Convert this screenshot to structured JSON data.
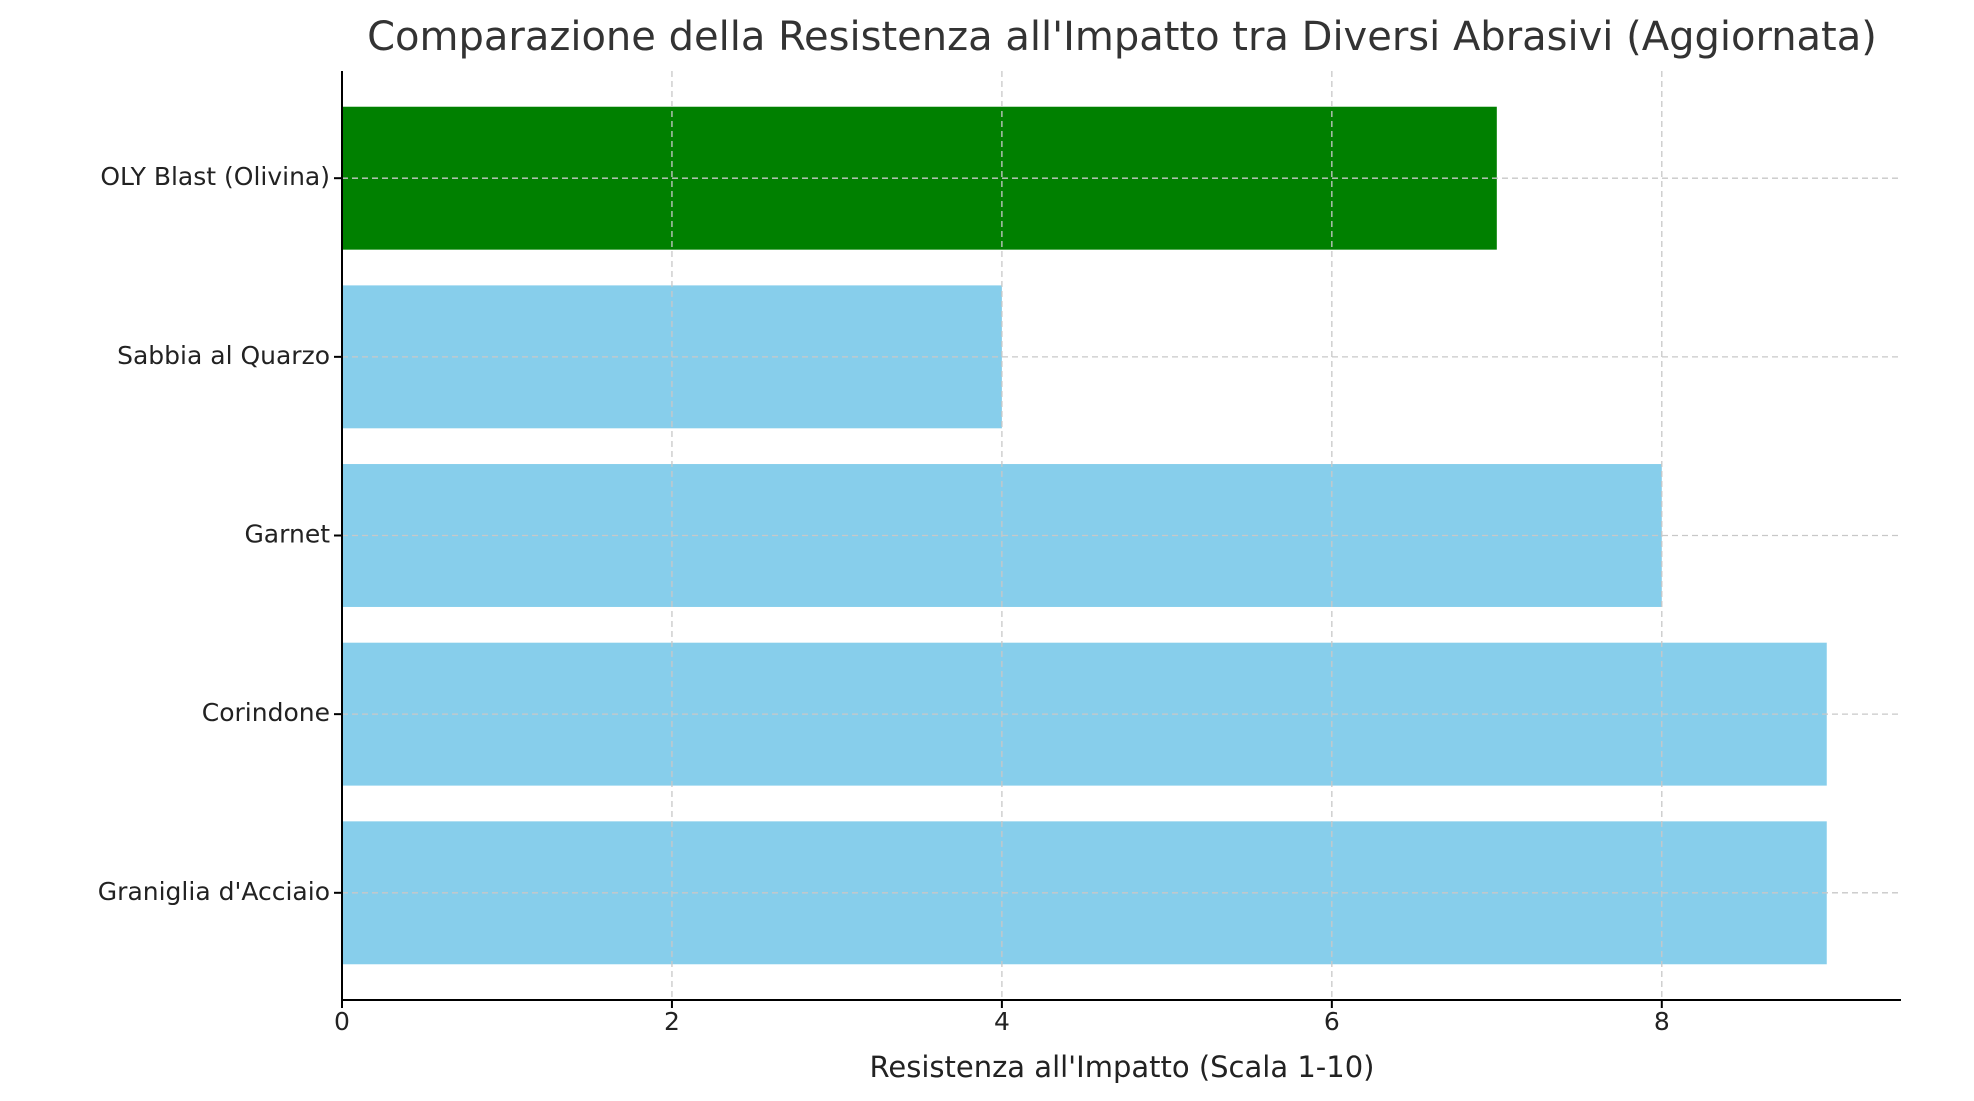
{
  "chart_data": {
    "type": "barh",
    "title": "Comparazione della Resistenza all'Impatto tra Diversi Abrasivi (Aggiornata)",
    "x_label": "Resistenza all'Impatto (Scala 1-10)",
    "categories": [
      "OLY Blast (Olivina)",
      "Sabbia al Quarzo",
      "Garnet",
      "Corindone",
      "Graniglia d'Acciaio"
    ],
    "values": [
      7,
      4,
      8,
      9,
      9
    ],
    "colors": [
      "#008000",
      "#87ceeb",
      "#87ceeb",
      "#87ceeb",
      "#87ceeb"
    ],
    "xlim": [
      0,
      9.45
    ],
    "xticks": [
      0,
      2,
      4,
      6,
      8
    ],
    "grid": true
  }
}
